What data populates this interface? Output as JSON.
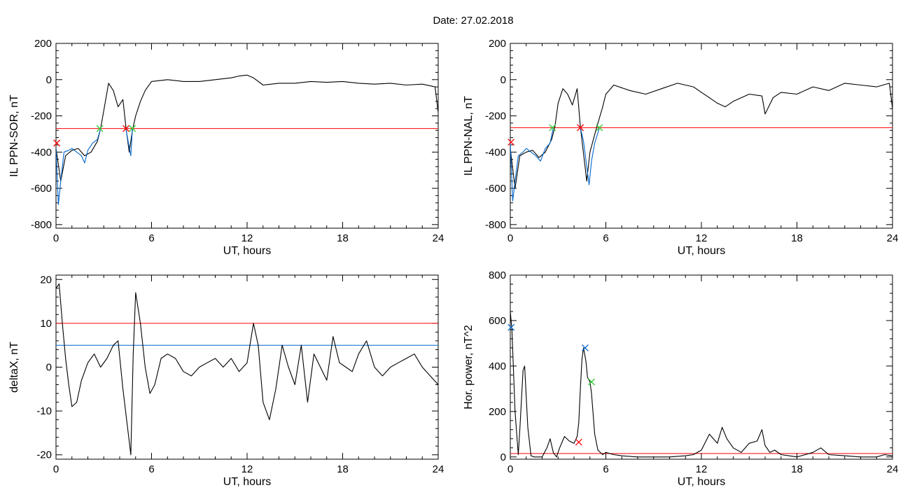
{
  "page_title": "Date:  27.02.2018",
  "chart_data": [
    {
      "id": "sor",
      "type": "line",
      "title": "",
      "xlabel": "UT, hours",
      "ylabel": "IL PPN-SOR, nT",
      "xlim": [
        0,
        24
      ],
      "ylim": [
        -820,
        200
      ],
      "xticks": [
        0,
        6,
        12,
        18,
        24
      ],
      "yticks": [
        -800,
        -600,
        -400,
        -200,
        0,
        200
      ],
      "grid": false,
      "threshold_lines": [
        {
          "value": -270,
          "color": "#ff0000"
        }
      ],
      "series": [
        {
          "color": "#000000",
          "x": [
            0,
            0.3,
            0.6,
            1.0,
            1.4,
            1.8,
            2.2,
            2.6,
            2.8,
            3.0,
            3.3,
            3.6,
            3.9,
            4.2,
            4.4,
            4.6,
            4.8,
            5.0,
            5.3,
            5.6,
            6.0,
            7,
            8,
            9,
            10,
            11,
            11.5,
            12,
            12.4,
            13.0,
            14,
            15,
            16,
            17,
            18,
            19,
            20,
            21,
            22,
            23,
            23.8,
            24
          ],
          "y": [
            -380,
            -560,
            -420,
            -390,
            -380,
            -420,
            -400,
            -340,
            -270,
            -170,
            -20,
            -60,
            -150,
            -110,
            -270,
            -400,
            -280,
            -200,
            -120,
            -60,
            -10,
            0,
            -10,
            -10,
            0,
            10,
            20,
            25,
            10,
            -30,
            -20,
            -20,
            -10,
            -15,
            -10,
            -20,
            -25,
            -20,
            -30,
            -25,
            -40,
            -180
          ]
        },
        {
          "color": "#0066cc",
          "x": [
            0,
            0.15,
            0.3,
            0.5,
            0.8,
            1.0,
            1.3,
            1.6,
            1.8,
            2.0,
            2.3,
            2.6,
            2.8
          ],
          "y": [
            -380,
            -690,
            -560,
            -400,
            -390,
            -380,
            -400,
            -420,
            -460,
            -390,
            -350,
            -330,
            -270
          ]
        },
        {
          "color": "#0066cc",
          "x": [
            4.4,
            4.55,
            4.7,
            4.8
          ],
          "y": [
            -275,
            -350,
            -420,
            -270
          ]
        }
      ],
      "markers": [
        {
          "x": 0.05,
          "y": -350,
          "color": "#ff0000"
        },
        {
          "x": 2.75,
          "y": -270,
          "color": "#33cc33"
        },
        {
          "x": 4.4,
          "y": -270,
          "color": "#ff0000"
        },
        {
          "x": 4.8,
          "y": -270,
          "color": "#33cc33"
        }
      ]
    },
    {
      "id": "nal",
      "type": "line",
      "title": "",
      "xlabel": "UT, hours",
      "ylabel": "IL PPN-NAL, nT",
      "xlim": [
        0,
        24
      ],
      "ylim": [
        -820,
        200
      ],
      "xticks": [
        0,
        6,
        12,
        18,
        24
      ],
      "yticks": [
        -800,
        -600,
        -400,
        -200,
        0,
        200
      ],
      "grid": false,
      "threshold_lines": [
        {
          "value": -265,
          "color": "#ff0000"
        }
      ],
      "series": [
        {
          "color": "#000000",
          "x": [
            0,
            0.3,
            0.6,
            1.0,
            1.4,
            1.8,
            2.2,
            2.6,
            2.8,
            3.0,
            3.3,
            3.6,
            3.9,
            4.2,
            4.4,
            4.8,
            5.0,
            5.4,
            5.8,
            6.0,
            6.5,
            7.5,
            8.5,
            9.5,
            10.5,
            11.5,
            12.0,
            12.5,
            13.0,
            13.5,
            14,
            15,
            15.8,
            16.0,
            16.5,
            17,
            18,
            19,
            20,
            21,
            22,
            23,
            23.8,
            24
          ],
          "y": [
            -380,
            -600,
            -420,
            -400,
            -390,
            -430,
            -400,
            -330,
            -260,
            -130,
            -50,
            -80,
            -140,
            -50,
            -260,
            -560,
            -400,
            -270,
            -150,
            -80,
            -30,
            -60,
            -80,
            -50,
            -20,
            -40,
            -70,
            -100,
            -130,
            -150,
            -120,
            -80,
            -90,
            -190,
            -100,
            -70,
            -80,
            -40,
            -60,
            -20,
            -30,
            -40,
            -20,
            -160
          ]
        },
        {
          "color": "#0066cc",
          "x": [
            0,
            0.15,
            0.3,
            0.5,
            0.8,
            1.0,
            1.3,
            1.6,
            1.9,
            2.2,
            2.5,
            2.7
          ],
          "y": [
            -350,
            -670,
            -560,
            -420,
            -400,
            -380,
            -400,
            -420,
            -450,
            -380,
            -350,
            -265
          ]
        },
        {
          "color": "#0066cc",
          "x": [
            4.4,
            4.6,
            4.8,
            4.95,
            5.1,
            5.3,
            5.6
          ],
          "y": [
            -265,
            -340,
            -480,
            -580,
            -450,
            -350,
            -265
          ]
        }
      ],
      "markers": [
        {
          "x": 0.05,
          "y": -345,
          "color": "#ff0000"
        },
        {
          "x": 2.65,
          "y": -265,
          "color": "#33cc33"
        },
        {
          "x": 4.4,
          "y": -265,
          "color": "#ff0000"
        },
        {
          "x": 5.6,
          "y": -265,
          "color": "#33cc33"
        }
      ]
    },
    {
      "id": "deltax",
      "type": "line",
      "title": "",
      "xlabel": "UT, hours",
      "ylabel": "deltaX, nT",
      "xlim": [
        0,
        24
      ],
      "ylim": [
        -21,
        21
      ],
      "xticks": [
        0,
        6,
        12,
        18,
        24
      ],
      "yticks": [
        -20,
        -10,
        0,
        10,
        20
      ],
      "grid": false,
      "threshold_lines": [
        {
          "value": 10,
          "color": "#ff0000"
        },
        {
          "value": 5,
          "color": "#0066cc"
        }
      ],
      "series": [
        {
          "color": "#000000",
          "x": [
            0,
            0.2,
            0.4,
            0.6,
            0.8,
            1.0,
            1.3,
            1.6,
            2.0,
            2.4,
            2.8,
            3.2,
            3.6,
            3.9,
            4.2,
            4.5,
            4.7,
            4.85,
            5.0,
            5.3,
            5.6,
            5.9,
            6.2,
            6.6,
            7.0,
            7.5,
            8.0,
            8.5,
            9.0,
            9.5,
            10.0,
            10.5,
            11.0,
            11.5,
            12.0,
            12.4,
            12.7,
            13.0,
            13.4,
            13.8,
            14.2,
            14.6,
            15.0,
            15.4,
            15.8,
            16.2,
            16.6,
            17.0,
            17.4,
            17.8,
            18.2,
            18.6,
            19.0,
            19.5,
            20.0,
            20.5,
            21.0,
            21.5,
            22.0,
            22.5,
            23.0,
            23.5,
            24
          ],
          "y": [
            18,
            19,
            10,
            2,
            -4,
            -9,
            -8,
            -3,
            1,
            3,
            0,
            2,
            5,
            6,
            -5,
            -14,
            -20,
            3,
            17,
            10,
            0,
            -6,
            -4,
            2,
            3,
            2,
            -1,
            -2,
            0,
            1,
            2,
            0,
            2,
            -1,
            1,
            10,
            5,
            -8,
            -12,
            -5,
            5,
            0,
            -4,
            5,
            -8,
            3,
            0,
            -3,
            7,
            1,
            0,
            -1,
            3,
            6,
            0,
            -2,
            0,
            1,
            2,
            3,
            0,
            -2,
            -4
          ]
        }
      ],
      "markers": []
    },
    {
      "id": "power",
      "type": "line",
      "title": "",
      "xlabel": "UT, hours",
      "ylabel": "Hor. power, nT^2",
      "xlim": [
        0,
        24
      ],
      "ylim": [
        -10,
        800
      ],
      "xticks": [
        0,
        6,
        12,
        18,
        24
      ],
      "yticks": [
        0,
        200,
        400,
        600,
        800
      ],
      "grid": false,
      "threshold_lines": [
        {
          "value": 15,
          "color": "#ff0000"
        }
      ],
      "series": [
        {
          "color": "#000000",
          "x": [
            0,
            0.1,
            0.3,
            0.5,
            0.6,
            0.8,
            0.9,
            1.1,
            1.3,
            1.5,
            2.0,
            2.3,
            2.5,
            2.7,
            2.9,
            3.1,
            3.4,
            3.7,
            4.0,
            4.2,
            4.3,
            4.4,
            4.5,
            4.6,
            4.75,
            4.85,
            5.0,
            5.1,
            5.3,
            5.5,
            5.8,
            6.0,
            6.5,
            7,
            8,
            9,
            10,
            11,
            11.5,
            12,
            12.5,
            13.0,
            13.3,
            13.6,
            14,
            14.5,
            15,
            15.5,
            15.8,
            16.0,
            16.3,
            16.6,
            17,
            17.5,
            18,
            19,
            19.5,
            20,
            21,
            22,
            23,
            23.5,
            24
          ],
          "y": [
            640,
            560,
            200,
            10,
            120,
            380,
            400,
            130,
            5,
            0,
            0,
            40,
            80,
            20,
            0,
            40,
            90,
            70,
            60,
            90,
            150,
            300,
            430,
            480,
            420,
            350,
            330,
            280,
            100,
            30,
            10,
            20,
            10,
            5,
            0,
            0,
            0,
            5,
            10,
            30,
            100,
            60,
            130,
            80,
            40,
            20,
            60,
            70,
            120,
            50,
            20,
            30,
            10,
            5,
            0,
            20,
            40,
            10,
            5,
            0,
            0,
            10,
            5
          ]
        }
      ],
      "markers": [
        {
          "x": 0.05,
          "y": 570,
          "color": "#0066cc"
        },
        {
          "x": 4.3,
          "y": 65,
          "color": "#ff0000"
        },
        {
          "x": 4.7,
          "y": 480,
          "color": "#0066cc"
        },
        {
          "x": 5.1,
          "y": 330,
          "color": "#33cc33"
        }
      ]
    }
  ]
}
